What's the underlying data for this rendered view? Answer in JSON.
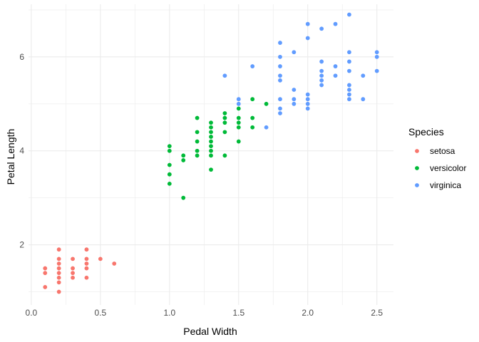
{
  "chart_data": {
    "type": "scatter",
    "xlabel": "Pedal Width",
    "ylabel": "Petal Length",
    "xlim": [
      -0.02,
      2.62
    ],
    "ylim": [
      0.72,
      7.12
    ],
    "x_ticks": [
      0.0,
      0.5,
      1.0,
      1.5,
      2.0,
      2.5
    ],
    "x_tick_labels": [
      "0.0",
      "0.5",
      "1.0",
      "1.5",
      "2.0",
      "2.5"
    ],
    "y_ticks": [
      2,
      4,
      6
    ],
    "y_tick_labels": [
      "2",
      "4",
      "6"
    ],
    "grid": true,
    "legend": {
      "title": "Species",
      "position": "right"
    },
    "series": [
      {
        "name": "setosa",
        "color": "#F8766D",
        "points": [
          [
            0.1,
            1.1
          ],
          [
            0.1,
            1.4
          ],
          [
            0.1,
            1.5
          ],
          [
            0.2,
            1.0
          ],
          [
            0.2,
            1.2
          ],
          [
            0.2,
            1.3
          ],
          [
            0.2,
            1.4
          ],
          [
            0.2,
            1.5
          ],
          [
            0.2,
            1.6
          ],
          [
            0.2,
            1.7
          ],
          [
            0.2,
            1.9
          ],
          [
            0.3,
            1.3
          ],
          [
            0.3,
            1.4
          ],
          [
            0.3,
            1.5
          ],
          [
            0.3,
            1.7
          ],
          [
            0.4,
            1.3
          ],
          [
            0.4,
            1.5
          ],
          [
            0.4,
            1.6
          ],
          [
            0.4,
            1.7
          ],
          [
            0.4,
            1.9
          ],
          [
            0.5,
            1.7
          ],
          [
            0.6,
            1.6
          ]
        ]
      },
      {
        "name": "versicolor",
        "color": "#00BA38",
        "points": [
          [
            1.0,
            3.3
          ],
          [
            1.0,
            3.5
          ],
          [
            1.0,
            3.7
          ],
          [
            1.0,
            4.0
          ],
          [
            1.0,
            4.1
          ],
          [
            1.1,
            3.0
          ],
          [
            1.1,
            3.8
          ],
          [
            1.1,
            3.9
          ],
          [
            1.2,
            3.9
          ],
          [
            1.2,
            4.0
          ],
          [
            1.2,
            4.2
          ],
          [
            1.2,
            4.4
          ],
          [
            1.2,
            4.7
          ],
          [
            1.3,
            3.6
          ],
          [
            1.3,
            3.9
          ],
          [
            1.3,
            4.0
          ],
          [
            1.3,
            4.1
          ],
          [
            1.3,
            4.2
          ],
          [
            1.3,
            4.3
          ],
          [
            1.3,
            4.4
          ],
          [
            1.3,
            4.5
          ],
          [
            1.3,
            4.6
          ],
          [
            1.4,
            3.9
          ],
          [
            1.4,
            4.4
          ],
          [
            1.4,
            4.6
          ],
          [
            1.4,
            4.7
          ],
          [
            1.4,
            4.8
          ],
          [
            1.5,
            4.2
          ],
          [
            1.5,
            4.5
          ],
          [
            1.5,
            4.6
          ],
          [
            1.5,
            4.7
          ],
          [
            1.5,
            4.9
          ],
          [
            1.6,
            4.5
          ],
          [
            1.6,
            4.7
          ],
          [
            1.6,
            5.1
          ],
          [
            1.7,
            5.0
          ]
        ]
      },
      {
        "name": "virginica",
        "color": "#619CFF",
        "points": [
          [
            1.4,
            5.6
          ],
          [
            1.5,
            5.0
          ],
          [
            1.5,
            5.1
          ],
          [
            1.6,
            5.8
          ],
          [
            1.7,
            4.5
          ],
          [
            1.8,
            4.8
          ],
          [
            1.8,
            4.9
          ],
          [
            1.8,
            5.1
          ],
          [
            1.8,
            5.5
          ],
          [
            1.8,
            5.6
          ],
          [
            1.8,
            5.8
          ],
          [
            1.8,
            6.0
          ],
          [
            1.8,
            6.3
          ],
          [
            1.9,
            5.0
          ],
          [
            1.9,
            5.1
          ],
          [
            1.9,
            5.3
          ],
          [
            1.9,
            6.1
          ],
          [
            2.0,
            4.9
          ],
          [
            2.0,
            5.0
          ],
          [
            2.0,
            5.1
          ],
          [
            2.0,
            5.2
          ],
          [
            2.0,
            6.4
          ],
          [
            2.0,
            6.7
          ],
          [
            2.1,
            5.4
          ],
          [
            2.1,
            5.5
          ],
          [
            2.1,
            5.6
          ],
          [
            2.1,
            5.7
          ],
          [
            2.1,
            5.9
          ],
          [
            2.1,
            6.6
          ],
          [
            2.2,
            5.6
          ],
          [
            2.2,
            5.8
          ],
          [
            2.2,
            6.7
          ],
          [
            2.3,
            5.1
          ],
          [
            2.3,
            5.2
          ],
          [
            2.3,
            5.3
          ],
          [
            2.3,
            5.4
          ],
          [
            2.3,
            5.7
          ],
          [
            2.3,
            5.9
          ],
          [
            2.3,
            6.1
          ],
          [
            2.3,
            6.9
          ],
          [
            2.4,
            5.1
          ],
          [
            2.4,
            5.6
          ],
          [
            2.5,
            5.7
          ],
          [
            2.5,
            6.0
          ],
          [
            2.5,
            6.1
          ]
        ]
      }
    ]
  }
}
